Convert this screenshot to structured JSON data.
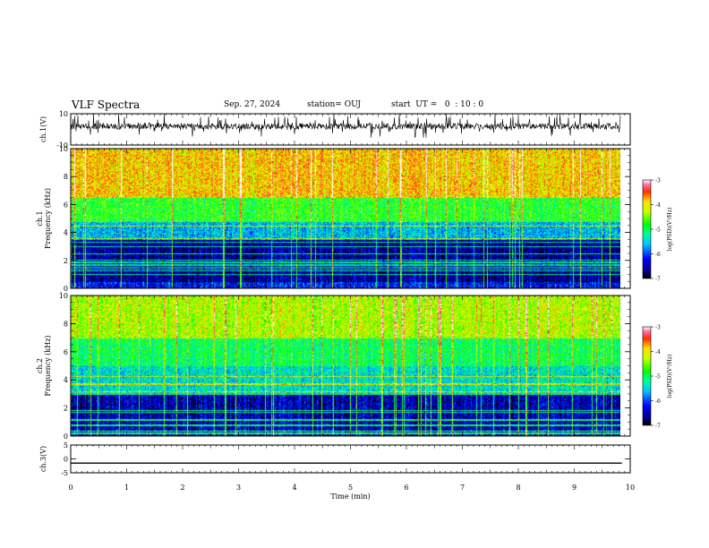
{
  "header": {
    "title": "VLF Spectra",
    "date": "Sep. 27, 2024",
    "station": "station= OUJ",
    "start_ut": "start  UT =   0  : 10 : 0"
  },
  "chart_data": [
    {
      "type": "line",
      "panel": "ch1-waveform",
      "ylabel": "ch.1(V)",
      "ylim": [
        -10,
        10
      ],
      "y_ticks": [
        "10",
        "-10"
      ],
      "xlim": [
        0,
        10
      ],
      "data_extent_min": [
        0,
        9.85
      ],
      "series": [
        {
          "description": "dense black waveform trace",
          "baseline": 2,
          "amplitude": 4
        }
      ]
    },
    {
      "type": "heatmap",
      "panel": "ch1-spectrogram",
      "ylabel": "ch.1\nFrequency  (kHz)",
      "ylim": [
        0,
        10
      ],
      "y_ticks": [
        "0",
        "2",
        "4",
        "6",
        "8",
        "10"
      ],
      "xlim": [
        0,
        10
      ],
      "colorbar": {
        "label": "log(PSD)(V²/Hz)",
        "range": [
          -7,
          -3
        ],
        "ticks": [
          "-7",
          "-6",
          "-5",
          "-4",
          "-3"
        ]
      },
      "bands_khz_to_value": [
        [
          0,
          0.5,
          -6.2
        ],
        [
          0.5,
          3.5,
          -6.6
        ],
        [
          3.5,
          4.8,
          -5.6
        ],
        [
          4.8,
          6.5,
          -4.8
        ],
        [
          6.5,
          10,
          -3.9
        ]
      ]
    },
    {
      "type": "heatmap",
      "panel": "ch2-spectrogram",
      "ylabel": "ch.2\nFrequency  (kHz)",
      "ylim": [
        0,
        10
      ],
      "y_ticks": [
        "0",
        "2",
        "4",
        "6",
        "8",
        "10"
      ],
      "xlim": [
        0,
        10
      ],
      "colorbar": {
        "label": "log(PSD)(V²/Hz)",
        "range": [
          -7,
          -3
        ],
        "ticks": [
          "-7",
          "-6",
          "-5",
          "-4",
          "-3"
        ]
      },
      "bands_khz_to_value": [
        [
          0,
          0.5,
          -6.3
        ],
        [
          0.5,
          3,
          -6.5
        ],
        [
          3,
          5,
          -5.4
        ],
        [
          5,
          7,
          -5.0
        ],
        [
          7,
          10,
          -4.3
        ]
      ]
    },
    {
      "type": "line",
      "panel": "ch3-waveform",
      "ylabel": "ch.3(V)",
      "ylim": [
        -5,
        5
      ],
      "y_ticks": [
        "5",
        "0",
        "-5"
      ],
      "xlim": [
        0,
        10
      ],
      "series": [
        {
          "description": "flat black line",
          "x": [
            0,
            9.85
          ],
          "y": [
            -1.5,
            -1.5
          ]
        }
      ]
    }
  ],
  "x_axis": {
    "label": "Time  (min)",
    "ticks": [
      "0",
      "1",
      "2",
      "3",
      "4",
      "5",
      "6",
      "7",
      "8",
      "9",
      "10"
    ]
  },
  "colors": {
    "frame": "#000000",
    "background": "#ffffff"
  }
}
